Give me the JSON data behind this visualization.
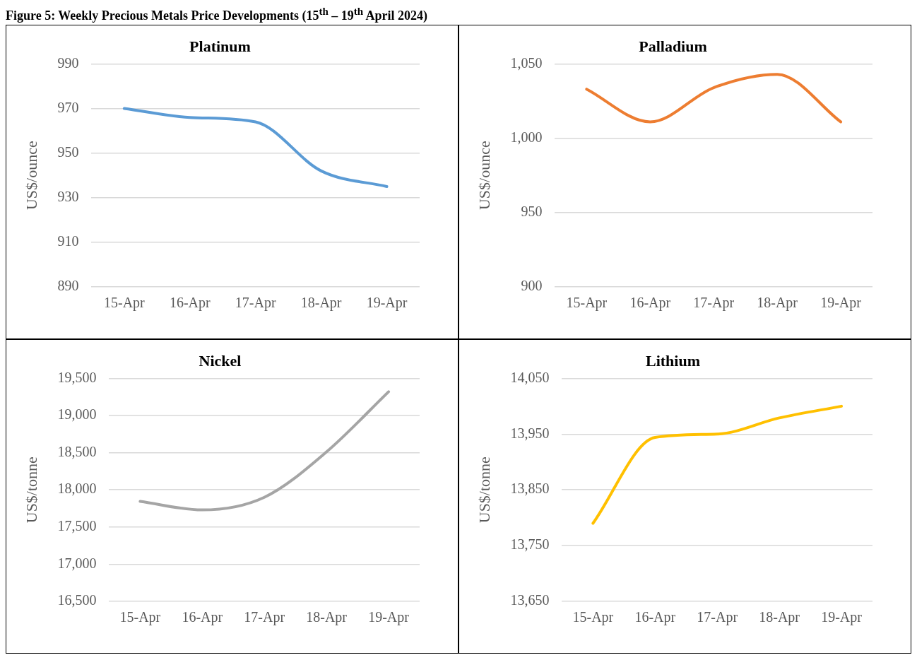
{
  "chart_data": [
    {
      "type": "line",
      "title": "Platinum",
      "ylabel": "US$/ounce",
      "annotations": [
        "Figure 5: Weekly Precious Metals Price Developments (15$^{th}$ – 19$^{th}$ April 2024)"
      ],
      "categories": [
        "15-Apr",
        "16-Apr",
        "17-Apr",
        "18-Apr",
        "19-Apr"
      ],
      "values": [
        970,
        966,
        964,
        942,
        935
      ],
      "color": "#5b9bd5",
      "ylim": [
        890,
        990
      ],
      "yticks": [
        890,
        910,
        930,
        950,
        970,
        990
      ],
      "grid": "y",
      "legend": false
    },
    {
      "type": "line",
      "title": "Palladium",
      "ylabel": "US$/ounce",
      "categories": [
        "15-Apr",
        "16-Apr",
        "17-Apr",
        "18-Apr",
        "19-Apr"
      ],
      "values": [
        1033,
        1011,
        1034,
        1043,
        1011
      ],
      "color": "#ed7d31",
      "ylim": [
        900,
        1050
      ],
      "yticks": [
        900,
        950,
        {
          "value": 1000,
          "label": "1,000"
        },
        {
          "value": 1050,
          "label": "1,050"
        }
      ],
      "grid": "y",
      "legend": false
    },
    {
      "type": "line",
      "title": "Nickel",
      "ylabel": "US$/tonne",
      "categories": [
        "15-Apr",
        "16-Apr",
        "17-Apr",
        "18-Apr",
        "19-Apr"
      ],
      "values": [
        17845,
        17730,
        17900,
        18510,
        19320
      ],
      "color": "#a5a5a5",
      "ylim": [
        16500,
        19500
      ],
      "yticks": [
        {
          "value": 16500,
          "label": "16,500"
        },
        {
          "value": 17000,
          "label": "17,000"
        },
        {
          "value": 17500,
          "label": "17,500"
        },
        {
          "value": 18000,
          "label": "18,000"
        },
        {
          "value": 18500,
          "label": "18,500"
        },
        {
          "value": 19000,
          "label": "19,000"
        },
        {
          "value": 19500,
          "label": "19,500"
        }
      ],
      "grid": "y",
      "legend": false
    },
    {
      "type": "line",
      "title": "Lithium",
      "ylabel": "US$/tonne",
      "categories": [
        "15-Apr",
        "16-Apr",
        "17-Apr",
        "18-Apr",
        "19-Apr"
      ],
      "values": [
        13790,
        13944,
        13950,
        13979,
        14000
      ],
      "color": "#ffc000",
      "ylim": [
        13650,
        14050
      ],
      "yticks": [
        {
          "value": 13650,
          "label": "13,650"
        },
        {
          "value": 13750,
          "label": "13,750"
        },
        {
          "value": 13850,
          "label": "13,850"
        },
        {
          "value": 13950,
          "label": "13,950"
        },
        {
          "value": 14050,
          "label": "14,050"
        }
      ],
      "grid": "y",
      "legend": false
    }
  ]
}
